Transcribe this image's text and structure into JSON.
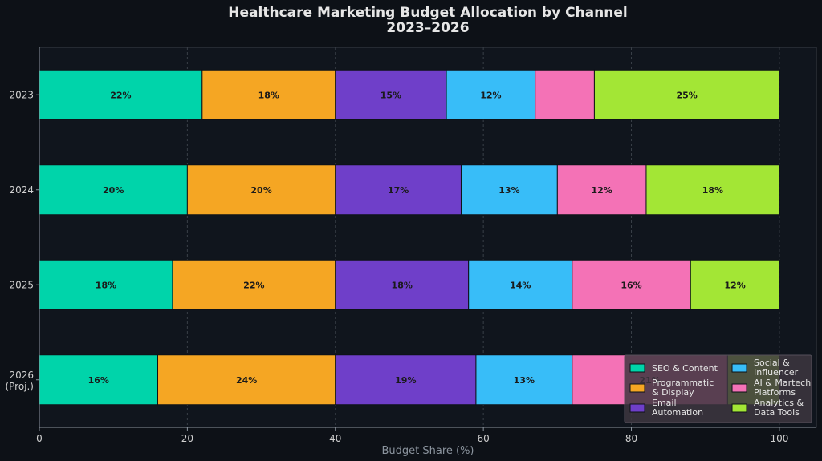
{
  "chart_data": {
    "type": "bar",
    "orientation": "horizontal",
    "stacked": true,
    "title": "Healthcare Marketing Budget Allocation by Channel",
    "subtitle": "2023–2026",
    "xlabel": "Budget Share (%)",
    "ylabel": "",
    "xlim": [
      0,
      105
    ],
    "xticks": [
      "0",
      "20",
      "40",
      "60",
      "80",
      "100"
    ],
    "grid": true,
    "legend_position": "bottom-right",
    "categories": [
      {
        "label": "2023"
      },
      {
        "label": "2024"
      },
      {
        "label": "2025"
      },
      {
        "label": "2026",
        "label2": "(Proj.)"
      }
    ],
    "series": [
      {
        "name": "SEO & Content",
        "color": "#00d4aa",
        "values": [
          22,
          20,
          18,
          16
        ]
      },
      {
        "name": "Programmatic & Display",
        "color": "#f5a623",
        "values": [
          18,
          20,
          22,
          24
        ]
      },
      {
        "name": "Email Automation",
        "color": "#6f3fc9",
        "values": [
          15,
          17,
          18,
          19
        ]
      },
      {
        "name": "Social & Influencer",
        "color": "#38bdf8",
        "values": [
          12,
          13,
          14,
          13
        ]
      },
      {
        "name": "AI & Martech Platforms",
        "color": "#f472b6",
        "values": [
          8,
          12,
          16,
          21
        ]
      },
      {
        "name": "Analytics & Data Tools",
        "color": "#a3e635",
        "values": [
          25,
          18,
          12,
          7
        ]
      }
    ]
  }
}
